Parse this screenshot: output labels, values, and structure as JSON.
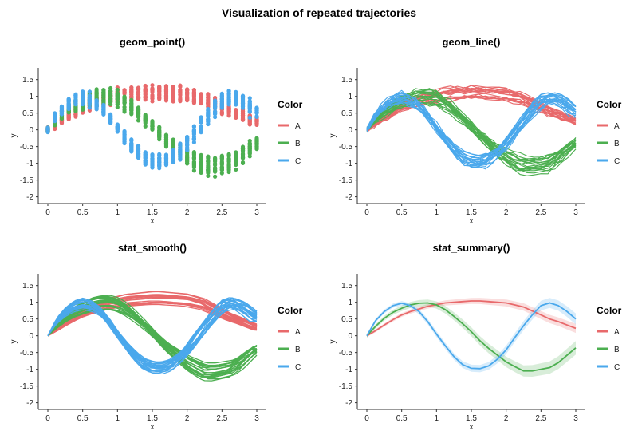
{
  "title": "Visualization of repeated trajectories",
  "colors": {
    "A": "#e8696b",
    "B": "#4caf50",
    "C": "#4aa8ec"
  },
  "chart_data": [
    {
      "type": "scatter",
      "title": "geom_point()",
      "xlabel": "x",
      "ylabel": "y",
      "xlim": [
        0,
        3
      ],
      "ylim": [
        -2,
        1.5
      ],
      "legend_title": "Color",
      "legend": [
        "A",
        "B",
        "C"
      ],
      "legend_position": "right"
    },
    {
      "type": "line",
      "title": "geom_line()",
      "xlabel": "x",
      "ylabel": "y",
      "xlim": [
        0,
        3
      ],
      "ylim": [
        -2,
        1.5
      ],
      "legend_title": "Color",
      "legend": [
        "A",
        "B",
        "C"
      ],
      "legend_position": "right"
    },
    {
      "type": "line",
      "title": "stat_smooth()",
      "xlabel": "x",
      "ylabel": "y",
      "xlim": [
        0,
        3
      ],
      "ylim": [
        -2,
        1.5
      ],
      "legend_title": "Color",
      "legend": [
        "A",
        "B",
        "C"
      ],
      "legend_position": "right"
    },
    {
      "type": "line",
      "title": "stat_summary()",
      "xlabel": "x",
      "ylabel": "y",
      "xlim": [
        0,
        3
      ],
      "ylim": [
        -2,
        1.5
      ],
      "legend_title": "Color",
      "legend": [
        "A",
        "B",
        "C"
      ],
      "legend_position": "right",
      "x": [
        0,
        0.125,
        0.25,
        0.375,
        0.5,
        0.625,
        0.75,
        0.875,
        1,
        1.125,
        1.25,
        1.375,
        1.5,
        1.625,
        1.75,
        1.875,
        2,
        2.125,
        2.25,
        2.375,
        2.5,
        2.625,
        2.75,
        2.875,
        3
      ],
      "series": [
        {
          "name": "A",
          "values": [
            0,
            0.15,
            0.32,
            0.48,
            0.62,
            0.72,
            0.8,
            0.88,
            0.93,
            0.98,
            1,
            1.02,
            1.04,
            1.04,
            1.02,
            1,
            0.98,
            0.92,
            0.86,
            0.74,
            0.62,
            0.5,
            0.42,
            0.32,
            0.22
          ]
        },
        {
          "name": "B",
          "values": [
            0,
            0.28,
            0.52,
            0.7,
            0.82,
            0.92,
            0.97,
            0.98,
            0.92,
            0.78,
            0.58,
            0.36,
            0.12,
            -0.15,
            -0.38,
            -0.58,
            -0.78,
            -0.92,
            -1.05,
            -1.05,
            -1,
            -0.95,
            -0.8,
            -0.58,
            -0.36
          ]
        },
        {
          "name": "C",
          "values": [
            0,
            0.45,
            0.72,
            0.9,
            0.97,
            0.9,
            0.72,
            0.42,
            0.05,
            -0.3,
            -0.62,
            -0.86,
            -0.97,
            -0.98,
            -0.9,
            -0.7,
            -0.42,
            -0.05,
            0.3,
            0.62,
            0.9,
            0.98,
            0.9,
            0.72,
            0.5
          ]
        }
      ],
      "bands": {
        "A": 0.1,
        "B": 0.15,
        "C": 0.12
      }
    }
  ]
}
